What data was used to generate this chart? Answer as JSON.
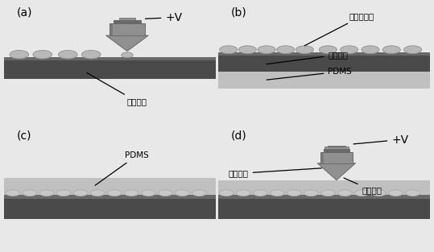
{
  "bg_color": "#e8e8e8",
  "panel_bg": "#ffffff",
  "substrate_dark": "#4a4a4a",
  "substrate_mid": "#686868",
  "substrate_light_top": "#808080",
  "pdms_color": "#c0c0c0",
  "pdms_light": "#d8d8d8",
  "lens_fill": "#b8b8b8",
  "lens_edge": "#888888",
  "nozzle_body": "#909090",
  "nozzle_dark": "#686868",
  "nozzle_light": "#b0b0b0",
  "label_fontsize": 7.5,
  "panel_label_fontsize": 10,
  "plus_v_text": "+V",
  "panel_labels": [
    "(a)",
    "(b)",
    "(c)",
    "(d)"
  ],
  "label_a": "硬质基底",
  "label_b1": "微透镜阵列",
  "label_b2": "硬质基底",
  "label_b3": "PDMS",
  "label_c": "PDMS",
  "label_d1": "电加热线",
  "label_d2": "导电浆料"
}
